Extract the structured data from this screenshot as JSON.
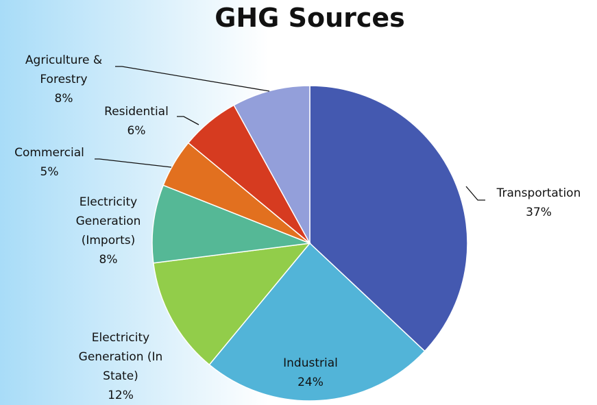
{
  "chart_data": {
    "type": "pie",
    "title": "GHG Sources",
    "categories": [
      "Transportation",
      "Industrial",
      "Electricity Generation (In State)",
      "Electricity Generation (Imports)",
      "Commercial",
      "Residential",
      "Agriculture & Forestry"
    ],
    "values": [
      37,
      24,
      12,
      8,
      5,
      6,
      8
    ],
    "value_labels": [
      "37%",
      "24%",
      "12%",
      "8%",
      "5%",
      "6%",
      "8%"
    ],
    "colors": [
      "#4459b0",
      "#52b4d8",
      "#92cd4a",
      "#55b896",
      "#e2701f",
      "#d63b20",
      "#939fda"
    ]
  }
}
